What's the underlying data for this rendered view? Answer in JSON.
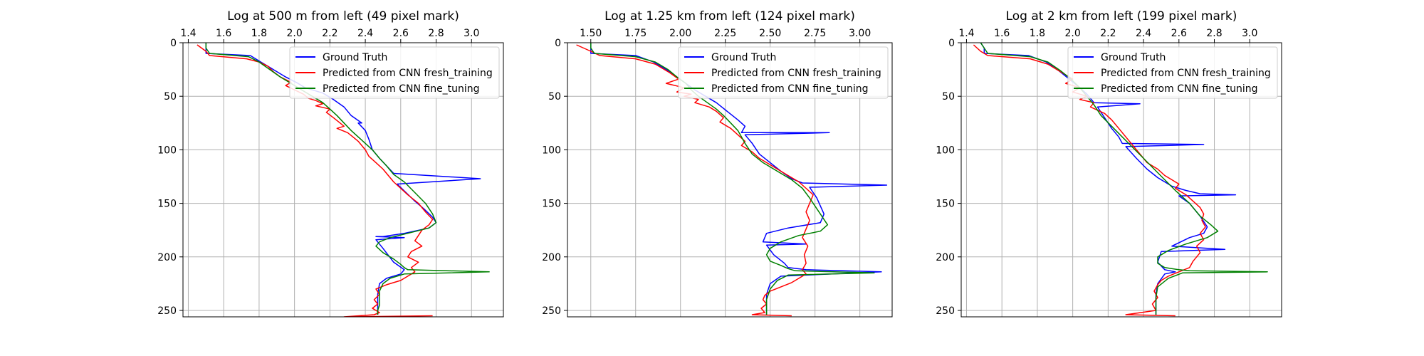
{
  "chart_data": [
    {
      "type": "line",
      "title": "Log at 500 m from left (49 pixel mark)",
      "xlim": [
        1.37,
        3.18
      ],
      "ylim": [
        0,
        256
      ],
      "y_inverted": true,
      "x_axis_position": "top",
      "grid": true,
      "legend": "upper-right",
      "xticks": [
        1.4,
        1.6,
        1.8,
        2.0,
        2.2,
        2.4,
        2.6,
        2.8,
        3.0
      ],
      "xtick_labels": [
        "1.4",
        "1.6",
        "1.8",
        "2.0",
        "2.2",
        "2.4",
        "2.6",
        "2.8",
        "3.0"
      ],
      "yticks": [
        0,
        50,
        100,
        150,
        200,
        250
      ],
      "ytick_labels": [
        "0",
        "50",
        "100",
        "150",
        "200",
        "250"
      ],
      "series": [
        {
          "name": "Ground Truth",
          "color": "#0000ff",
          "x": [
            1.5,
            1.5,
            1.5,
            1.75,
            1.8,
            1.88,
            1.95,
            2.02,
            2.06,
            2.16,
            2.22,
            2.28,
            2.32,
            2.38,
            2.36,
            2.4,
            2.42,
            2.44,
            2.48,
            2.52,
            2.56,
            3.05,
            2.58,
            2.63,
            2.68,
            2.73,
            2.78,
            2.8,
            2.76,
            2.62,
            2.5,
            2.46,
            2.62,
            2.46,
            2.5,
            2.56,
            2.62,
            2.6,
            2.52,
            2.48,
            2.47,
            2.47,
            2.47
          ],
          "y": [
            0,
            5,
            10,
            12,
            17,
            25,
            32,
            38,
            42,
            47,
            53,
            60,
            68,
            75,
            75,
            82,
            90,
            100,
            108,
            115,
            122,
            127,
            132,
            140,
            148,
            155,
            163,
            168,
            173,
            178,
            181,
            181,
            182,
            184,
            192,
            205,
            212,
            216,
            220,
            225,
            235,
            245,
            254
          ]
        },
        {
          "name": "Predicted from CNN fresh_training",
          "color": "#ff0000",
          "x": [
            1.45,
            1.5,
            1.52,
            1.73,
            1.8,
            1.85,
            1.88,
            1.92,
            1.98,
            1.95,
            2.0,
            2.05,
            2.08,
            2.12,
            2.16,
            2.12,
            2.2,
            2.18,
            2.22,
            2.25,
            2.28,
            2.24,
            2.3,
            2.33,
            2.36,
            2.38,
            2.4,
            2.42,
            2.46,
            2.5,
            2.53,
            2.56,
            2.6,
            2.64,
            2.7,
            2.74,
            2.78,
            2.76,
            2.72,
            2.7,
            2.68,
            2.72,
            2.66,
            2.64,
            2.7,
            2.66,
            2.68,
            2.64,
            2.6,
            2.52,
            2.46,
            2.48,
            2.45,
            2.47,
            2.44,
            2.48,
            2.45,
            2.28,
            2.78
          ],
          "y": [
            2,
            8,
            12,
            15,
            18,
            22,
            27,
            32,
            37,
            40,
            44,
            48,
            52,
            54,
            57,
            59,
            62,
            65,
            70,
            74,
            78,
            80,
            84,
            88,
            92,
            96,
            100,
            106,
            112,
            118,
            124,
            130,
            136,
            142,
            150,
            158,
            165,
            170,
            175,
            180,
            185,
            190,
            195,
            200,
            205,
            210,
            214,
            218,
            222,
            226,
            230,
            235,
            240,
            244,
            248,
            252,
            254,
            256,
            255
          ]
        },
        {
          "name": "Predicted from CNN fine_tuning",
          "color": "#008000",
          "x": [
            1.5,
            1.5,
            1.52,
            1.74,
            1.8,
            1.86,
            1.92,
            1.98,
            2.04,
            2.1,
            2.16,
            2.2,
            2.24,
            2.28,
            2.32,
            2.36,
            2.4,
            2.44,
            2.48,
            2.52,
            2.56,
            2.62,
            2.68,
            2.74,
            2.78,
            2.8,
            2.76,
            2.64,
            2.54,
            2.48,
            2.46,
            2.5,
            2.56,
            2.6,
            2.62,
            2.64,
            3.1,
            2.62,
            2.54,
            2.5,
            2.48,
            2.48,
            2.48,
            2.47,
            2.47
          ],
          "y": [
            0,
            5,
            10,
            13,
            18,
            25,
            32,
            38,
            44,
            50,
            56,
            62,
            68,
            75,
            82,
            88,
            94,
            100,
            108,
            115,
            123,
            130,
            140,
            150,
            160,
            168,
            173,
            178,
            182,
            186,
            190,
            196,
            202,
            207,
            210,
            212,
            214,
            216,
            220,
            225,
            232,
            240,
            245,
            250,
            254
          ]
        }
      ]
    },
    {
      "type": "line",
      "title": "Log at 1.25 km from left (124 pixel mark)",
      "xlim": [
        1.37,
        3.18
      ],
      "ylim": [
        0,
        256
      ],
      "y_inverted": true,
      "x_axis_position": "top",
      "grid": true,
      "legend": "upper-right",
      "xticks": [
        1.5,
        1.75,
        2.0,
        2.25,
        2.5,
        2.75,
        3.0
      ],
      "xtick_labels": [
        "1.50",
        "1.75",
        "2.00",
        "2.25",
        "2.50",
        "2.75",
        "3.00"
      ],
      "yticks": [
        0,
        50,
        100,
        150,
        200,
        250
      ],
      "ytick_labels": [
        "0",
        "50",
        "100",
        "150",
        "200",
        "250"
      ],
      "series": [
        {
          "name": "Ground Truth",
          "color": "#0000ff",
          "x": [
            1.5,
            1.5,
            1.5,
            1.75,
            1.85,
            1.92,
            1.98,
            2.03,
            2.08,
            2.14,
            2.2,
            2.26,
            2.32,
            2.36,
            2.34,
            2.83,
            2.36,
            2.4,
            2.44,
            2.5,
            2.56,
            2.62,
            2.68,
            3.15,
            2.72,
            2.76,
            2.8,
            2.78,
            2.6,
            2.48,
            2.46,
            2.7,
            2.48,
            2.52,
            2.58,
            2.6,
            2.7,
            3.12,
            2.56,
            2.5,
            2.48,
            2.48,
            2.48
          ],
          "y": [
            0,
            5,
            10,
            12,
            18,
            25,
            32,
            38,
            44,
            50,
            56,
            64,
            72,
            78,
            84,
            84,
            86,
            94,
            104,
            112,
            120,
            127,
            131,
            133,
            135,
            145,
            160,
            168,
            173,
            178,
            186,
            188,
            189,
            198,
            206,
            210,
            212,
            214,
            218,
            225,
            235,
            245,
            254
          ]
        },
        {
          "name": "Predicted from CNN fresh_training",
          "color": "#ff0000",
          "x": [
            1.42,
            1.5,
            1.55,
            1.75,
            1.86,
            1.94,
            1.99,
            1.92,
            2.02,
            1.98,
            2.06,
            2.02,
            2.1,
            2.08,
            2.16,
            2.2,
            2.24,
            2.22,
            2.28,
            2.32,
            2.36,
            2.34,
            2.4,
            2.44,
            2.5,
            2.56,
            2.62,
            2.66,
            2.7,
            2.74,
            2.72,
            2.7,
            2.72,
            2.7,
            2.68,
            2.71,
            2.69,
            2.7,
            2.68,
            2.7,
            2.66,
            2.62,
            2.56,
            2.5,
            2.47,
            2.46,
            2.48,
            2.45,
            2.47,
            2.4,
            2.62
          ],
          "y": [
            2,
            8,
            12,
            15,
            20,
            28,
            34,
            38,
            42,
            46,
            48,
            50,
            53,
            56,
            60,
            64,
            70,
            74,
            80,
            86,
            92,
            96,
            102,
            108,
            114,
            120,
            126,
            130,
            136,
            142,
            150,
            158,
            166,
            174,
            182,
            190,
            198,
            206,
            212,
            216,
            220,
            224,
            228,
            232,
            236,
            240,
            244,
            248,
            252,
            254,
            255
          ]
        },
        {
          "name": "Predicted from CNN fine_tuning",
          "color": "#008000",
          "x": [
            1.5,
            1.5,
            1.52,
            1.75,
            1.86,
            1.93,
            1.98,
            2.03,
            2.06,
            2.1,
            2.15,
            2.2,
            2.24,
            2.28,
            2.32,
            2.34,
            2.36,
            2.4,
            2.46,
            2.54,
            2.62,
            2.68,
            2.72,
            2.78,
            2.82,
            2.78,
            2.66,
            2.56,
            2.5,
            2.48,
            2.5,
            2.56,
            2.6,
            2.64,
            3.08,
            2.6,
            2.54,
            2.5,
            2.48,
            2.48,
            2.48
          ],
          "y": [
            0,
            5,
            10,
            13,
            18,
            25,
            32,
            38,
            44,
            50,
            56,
            62,
            68,
            75,
            82,
            88,
            94,
            104,
            112,
            120,
            128,
            136,
            145,
            160,
            170,
            176,
            180,
            186,
            192,
            198,
            204,
            208,
            211,
            213,
            215,
            217,
            222,
            230,
            240,
            248,
            254
          ]
        }
      ]
    },
    {
      "type": "line",
      "title": "Log at 2 km from left (199 pixel mark)",
      "xlim": [
        1.37,
        3.18
      ],
      "ylim": [
        0,
        256
      ],
      "y_inverted": true,
      "x_axis_position": "top",
      "grid": true,
      "legend": "upper-right",
      "xticks": [
        1.4,
        1.6,
        1.8,
        2.0,
        2.2,
        2.4,
        2.6,
        2.8,
        3.0
      ],
      "xtick_labels": [
        "1.4",
        "1.6",
        "1.8",
        "2.0",
        "2.2",
        "2.4",
        "2.6",
        "2.8",
        "3.0"
      ],
      "yticks": [
        0,
        50,
        100,
        150,
        200,
        250
      ],
      "ytick_labels": [
        "0",
        "50",
        "100",
        "150",
        "200",
        "250"
      ],
      "series": [
        {
          "name": "Ground Truth",
          "color": "#0000ff",
          "x": [
            1.48,
            1.5,
            1.5,
            1.75,
            1.85,
            1.92,
            1.98,
            2.04,
            2.08,
            2.1,
            2.12,
            2.38,
            2.14,
            2.18,
            2.22,
            2.26,
            2.28,
            2.74,
            2.3,
            2.36,
            2.42,
            2.48,
            2.56,
            2.64,
            2.72,
            2.92,
            2.6,
            2.66,
            2.72,
            2.76,
            2.74,
            2.66,
            2.56,
            2.86,
            2.5,
            2.48,
            2.52,
            2.58,
            2.52,
            2.48,
            2.47,
            2.47,
            2.47
          ],
          "y": [
            0,
            5,
            10,
            12,
            18,
            26,
            34,
            42,
            48,
            52,
            56,
            57,
            60,
            70,
            80,
            88,
            94,
            95,
            97,
            108,
            118,
            126,
            134,
            138,
            141,
            142,
            143,
            150,
            162,
            172,
            178,
            182,
            190,
            193,
            195,
            205,
            212,
            214,
            216,
            225,
            235,
            245,
            254
          ]
        },
        {
          "name": "Predicted from CNN fresh_training",
          "color": "#ff0000",
          "x": [
            1.44,
            1.48,
            1.52,
            1.76,
            1.86,
            1.94,
            2.0,
            1.96,
            2.04,
            2.0,
            2.08,
            2.04,
            2.12,
            2.1,
            2.18,
            2.22,
            2.26,
            2.3,
            2.34,
            2.38,
            2.42,
            2.48,
            2.52,
            2.56,
            2.6,
            2.58,
            2.64,
            2.68,
            2.72,
            2.74,
            2.73,
            2.75,
            2.72,
            2.74,
            2.7,
            2.72,
            2.68,
            2.66,
            2.6,
            2.54,
            2.5,
            2.48,
            2.46,
            2.48,
            2.45,
            2.47,
            2.3,
            2.58
          ],
          "y": [
            2,
            8,
            12,
            15,
            20,
            28,
            34,
            38,
            42,
            46,
            50,
            53,
            56,
            60,
            66,
            72,
            80,
            88,
            96,
            104,
            112,
            118,
            124,
            128,
            132,
            136,
            142,
            148,
            154,
            160,
            166,
            172,
            178,
            184,
            190,
            196,
            204,
            210,
            214,
            218,
            222,
            226,
            232,
            238,
            244,
            250,
            254,
            255
          ]
        },
        {
          "name": "Predicted from CNN fine_tuning",
          "color": "#008000",
          "x": [
            1.48,
            1.5,
            1.52,
            1.76,
            1.86,
            1.93,
            1.99,
            2.04,
            2.08,
            2.12,
            2.16,
            2.22,
            2.28,
            2.34,
            2.4,
            2.46,
            2.52,
            2.58,
            2.66,
            2.72,
            2.78,
            2.82,
            2.76,
            2.64,
            2.54,
            2.48,
            2.48,
            2.52,
            2.6,
            2.66,
            3.1,
            2.62,
            2.54,
            2.48,
            2.47,
            2.47,
            2.47
          ],
          "y": [
            0,
            5,
            10,
            13,
            18,
            26,
            34,
            42,
            50,
            58,
            68,
            78,
            88,
            98,
            108,
            118,
            128,
            138,
            150,
            162,
            170,
            176,
            182,
            188,
            194,
            200,
            206,
            210,
            212,
            213,
            214,
            215,
            220,
            228,
            238,
            246,
            254
          ]
        }
      ]
    }
  ]
}
